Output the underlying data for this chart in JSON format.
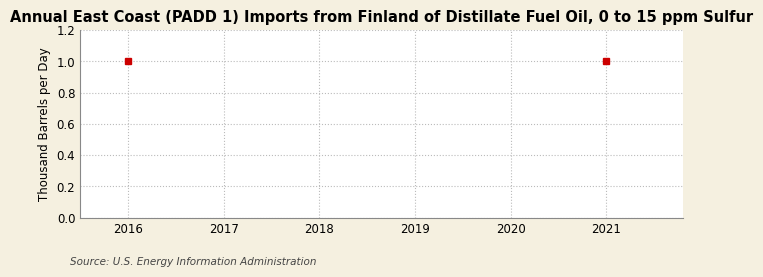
{
  "title": "Annual East Coast (PADD 1) Imports from Finland of Distillate Fuel Oil, 0 to 15 ppm Sulfur",
  "ylabel": "Thousand Barrels per Day",
  "source": "Source: U.S. Energy Information Administration",
  "x_data": [
    2016,
    2021
  ],
  "y_data": [
    1.0,
    1.0
  ],
  "xlim": [
    2015.5,
    2021.8
  ],
  "ylim": [
    0.0,
    1.2
  ],
  "yticks": [
    0.0,
    0.2,
    0.4,
    0.6,
    0.8,
    1.0,
    1.2
  ],
  "xticks": [
    2016,
    2017,
    2018,
    2019,
    2020,
    2021
  ],
  "marker_color": "#cc0000",
  "marker": "s",
  "marker_size": 4,
  "grid_color": "#bbbbbb",
  "figure_background_color": "#f5f0e0",
  "plot_background_color": "#ffffff",
  "title_fontsize": 10.5,
  "axis_label_fontsize": 8.5,
  "tick_fontsize": 8.5,
  "source_fontsize": 7.5
}
